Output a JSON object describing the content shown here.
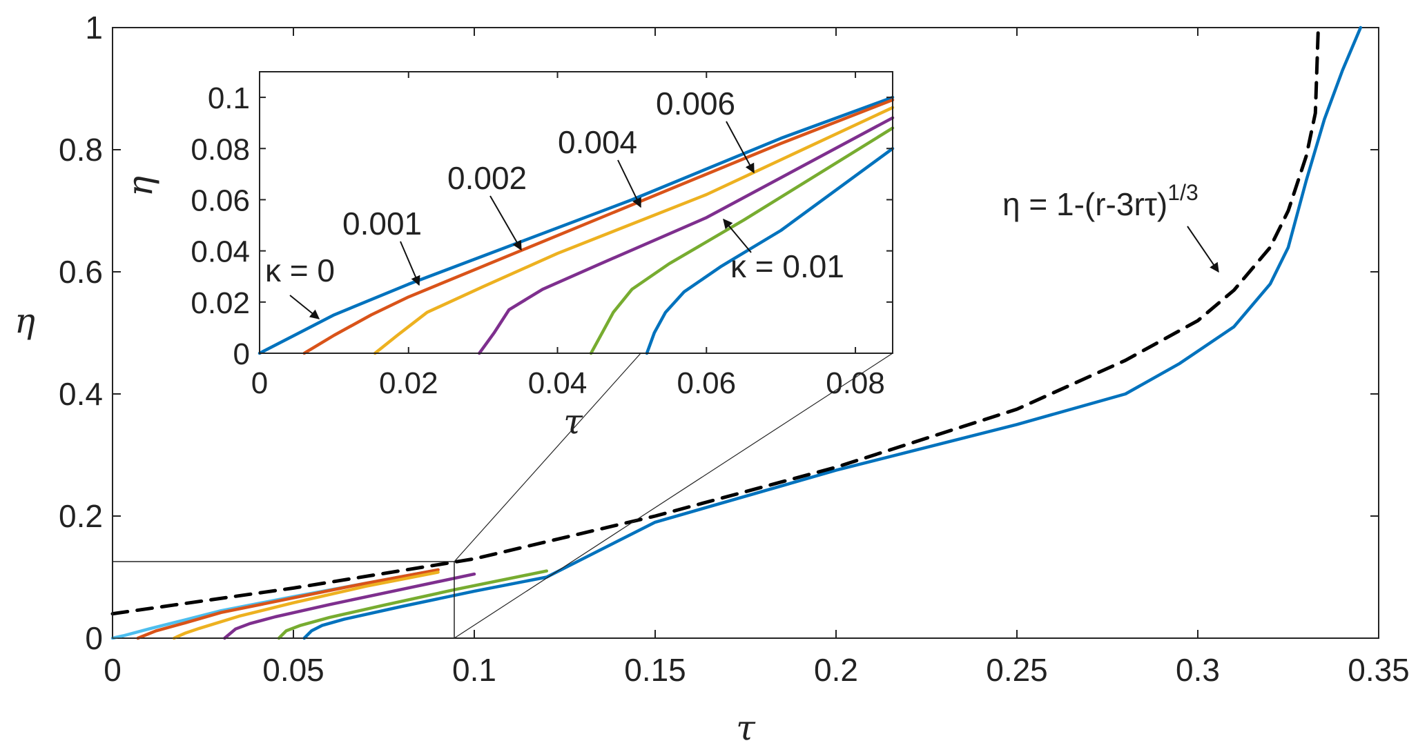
{
  "chart_data": [
    {
      "type": "line",
      "title": "",
      "xlabel": "τ",
      "ylabel": "η",
      "xlim": [
        0,
        0.35
      ],
      "ylim": [
        0,
        1
      ],
      "xticks": [
        "0",
        "0.05",
        "0.1",
        "0.15",
        "0.2",
        "0.25",
        "0.3",
        "0.35"
      ],
      "yticks": [
        "0",
        "0.2",
        "0.4",
        "0.6",
        "0.8",
        "1"
      ],
      "grid": false,
      "legend": "none",
      "series": [
        {
          "color": "#4DBEEE",
          "style": "solid",
          "points": [
            [
              0,
              0
            ],
            [
              0.003,
              0.004
            ],
            [
              0.01,
              0.015
            ],
            [
              0.02,
              0.03
            ],
            [
              0.03,
              0.045
            ],
            [
              0.05,
              0.068
            ],
            [
              0.07,
              0.09
            ],
            [
              0.09,
              0.112
            ]
          ]
        },
        {
          "color": "#D95319",
          "style": "solid",
          "points": [
            [
              0.007,
              0
            ],
            [
              0.012,
              0.012
            ],
            [
              0.02,
              0.025
            ],
            [
              0.03,
              0.042
            ],
            [
              0.05,
              0.066
            ],
            [
              0.07,
              0.09
            ],
            [
              0.09,
              0.112
            ]
          ]
        },
        {
          "color": "#EDB120",
          "style": "solid",
          "points": [
            [
              0.017,
              0
            ],
            [
              0.02,
              0.008
            ],
            [
              0.024,
              0.016
            ],
            [
              0.035,
              0.036
            ],
            [
              0.05,
              0.058
            ],
            [
              0.07,
              0.085
            ],
            [
              0.09,
              0.108
            ]
          ]
        },
        {
          "color": "#7E2F8E",
          "style": "solid",
          "points": [
            [
              0.031,
              0
            ],
            [
              0.034,
              0.015
            ],
            [
              0.038,
              0.024
            ],
            [
              0.045,
              0.035
            ],
            [
              0.06,
              0.055
            ],
            [
              0.08,
              0.08
            ],
            [
              0.1,
              0.105
            ]
          ]
        },
        {
          "color": "#77AC30",
          "style": "solid",
          "points": [
            [
              0.046,
              0
            ],
            [
              0.048,
              0.012
            ],
            [
              0.052,
              0.021
            ],
            [
              0.06,
              0.034
            ],
            [
              0.075,
              0.054
            ],
            [
              0.095,
              0.08
            ],
            [
              0.12,
              0.11
            ]
          ]
        },
        {
          "color": "#0072BD",
          "style": "solid",
          "points": [
            [
              0.053,
              0
            ],
            [
              0.055,
              0.012
            ],
            [
              0.058,
              0.021
            ],
            [
              0.064,
              0.031
            ],
            [
              0.08,
              0.052
            ],
            [
              0.1,
              0.077
            ],
            [
              0.12,
              0.1
            ],
            [
              0.15,
              0.19
            ],
            [
              0.2,
              0.275
            ],
            [
              0.25,
              0.35
            ],
            [
              0.28,
              0.4
            ],
            [
              0.295,
              0.45
            ],
            [
              0.31,
              0.51
            ],
            [
              0.32,
              0.58
            ],
            [
              0.325,
              0.64
            ],
            [
              0.33,
              0.75
            ],
            [
              0.335,
              0.85
            ],
            [
              0.34,
              0.93
            ],
            [
              0.345,
              1.0
            ]
          ]
        },
        {
          "color": "#000000",
          "style": "dashed",
          "points": [
            [
              0,
              0.04
            ],
            [
              0.05,
              0.082
            ],
            [
              0.1,
              0.13
            ],
            [
              0.15,
              0.2
            ],
            [
              0.2,
              0.28
            ],
            [
              0.25,
              0.375
            ],
            [
              0.28,
              0.455
            ],
            [
              0.3,
              0.52
            ],
            [
              0.31,
              0.57
            ],
            [
              0.32,
              0.64
            ],
            [
              0.325,
              0.7
            ],
            [
              0.33,
              0.79
            ],
            [
              0.3325,
              0.86
            ],
            [
              0.3333,
              1.0
            ]
          ]
        }
      ],
      "annotations": [
        {
          "formula": "η = 1-(r-3rτ)",
          "exponent": "1/3"
        }
      ]
    },
    {
      "type": "line",
      "title": "",
      "xlabel": "τ",
      "ylabel": "η",
      "xlim": [
        0,
        0.085
      ],
      "ylim": [
        0,
        0.11
      ],
      "xticks": [
        "0",
        "0.02",
        "0.04",
        "0.06",
        "0.08"
      ],
      "yticks": [
        "0",
        "0.02",
        "0.04",
        "0.06",
        "0.08",
        "0.1"
      ],
      "grid": false,
      "legend": "none",
      "series": [
        {
          "color": "#0072BD",
          "style": "solid",
          "points": [
            [
              0,
              0
            ],
            [
              0.005,
              0.0075
            ],
            [
              0.01,
              0.015
            ],
            [
              0.02,
              0.027
            ],
            [
              0.03,
              0.038
            ],
            [
              0.05,
              0.06
            ],
            [
              0.07,
              0.084
            ],
            [
              0.085,
              0.1
            ]
          ]
        },
        {
          "color": "#D95319",
          "style": "solid",
          "points": [
            [
              0.006,
              0
            ],
            [
              0.01,
              0.007
            ],
            [
              0.015,
              0.015
            ],
            [
              0.02,
              0.022
            ],
            [
              0.03,
              0.034
            ],
            [
              0.05,
              0.058
            ],
            [
              0.07,
              0.082
            ],
            [
              0.085,
              0.099
            ]
          ]
        },
        {
          "color": "#EDB120",
          "style": "solid",
          "points": [
            [
              0.0155,
              0
            ],
            [
              0.0185,
              0.007
            ],
            [
              0.0225,
              0.016
            ],
            [
              0.03,
              0.026
            ],
            [
              0.04,
              0.039
            ],
            [
              0.06,
              0.062
            ],
            [
              0.085,
              0.096
            ]
          ]
        },
        {
          "color": "#7E2F8E",
          "style": "solid",
          "points": [
            [
              0.0295,
              0
            ],
            [
              0.0315,
              0.008
            ],
            [
              0.0335,
              0.017
            ],
            [
              0.038,
              0.025
            ],
            [
              0.045,
              0.034
            ],
            [
              0.06,
              0.053
            ],
            [
              0.085,
              0.092
            ]
          ]
        },
        {
          "color": "#77AC30",
          "style": "solid",
          "points": [
            [
              0.0445,
              0
            ],
            [
              0.046,
              0.008
            ],
            [
              0.0475,
              0.016
            ],
            [
              0.05,
              0.025
            ],
            [
              0.055,
              0.035
            ],
            [
              0.065,
              0.052
            ],
            [
              0.085,
              0.088
            ]
          ]
        },
        {
          "color": "#0072BD",
          "style": "solid",
          "points": [
            [
              0.052,
              0
            ],
            [
              0.053,
              0.008
            ],
            [
              0.0545,
              0.016
            ],
            [
              0.057,
              0.024
            ],
            [
              0.062,
              0.034
            ],
            [
              0.07,
              0.048
            ],
            [
              0.085,
              0.08
            ]
          ]
        }
      ],
      "annotations": [
        {
          "label": "κ = 0"
        },
        {
          "label": "0.001"
        },
        {
          "label": "0.002"
        },
        {
          "label": "0.004"
        },
        {
          "label": "0.006"
        },
        {
          "label": "κ = 0.01"
        }
      ]
    }
  ]
}
